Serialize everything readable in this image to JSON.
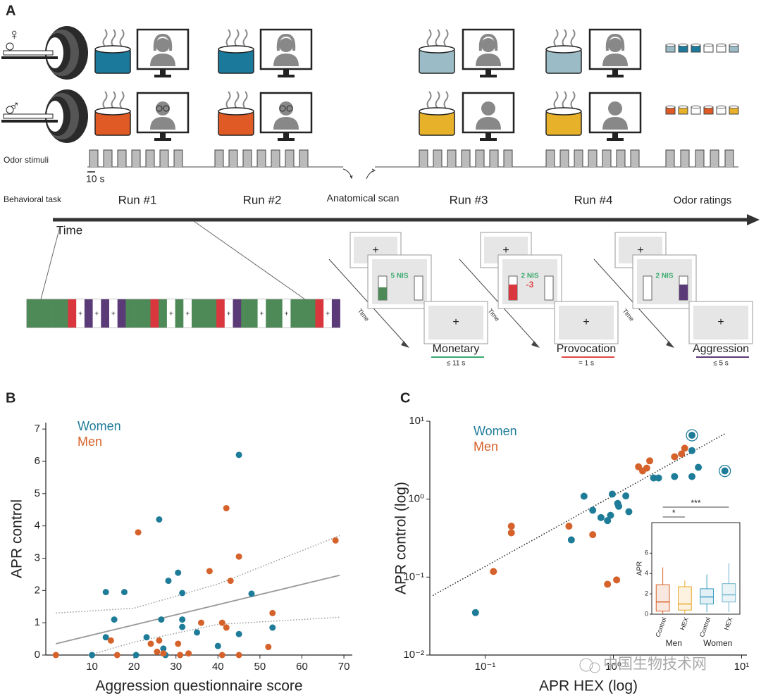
{
  "panel_a": {
    "panel_label": "A",
    "female": "♀",
    "male": "♂",
    "odor_stimuli": "Odor stimuli",
    "scale_bar": "10 s",
    "behavioral_task": "Behavioral task",
    "runs": [
      "Run #1",
      "Run #2",
      "Anatomical scan",
      "Run #3",
      "Run #4",
      "Odor ratings"
    ],
    "time": "Time",
    "trials": [
      {
        "screen_text": "5 NIS",
        "penalty": null,
        "time": "Time",
        "name": "Monetary",
        "duration": "≤ 11 s"
      },
      {
        "screen_text": "2 NIS",
        "penalty": "-3",
        "time": "Time",
        "name": "Provocation",
        "duration": "= 1 s"
      },
      {
        "screen_text": "2 NIS",
        "penalty": null,
        "time": "Time",
        "name": "Aggression",
        "duration": "≤ 5 s"
      }
    ],
    "fixation": "+",
    "watermark": "中国生物技术网"
  },
  "chart_data": [
    {
      "type": "scatter",
      "panel_label": "B",
      "xlabel": "Aggression questionnaire score",
      "ylabel": "APR control",
      "xlim": [
        -1,
        72
      ],
      "ylim": [
        0,
        7.2
      ],
      "xticks": [
        10,
        20,
        30,
        40,
        50,
        60,
        70
      ],
      "yticks": [
        0,
        1,
        2,
        3,
        4,
        5,
        6,
        7
      ],
      "series": [
        {
          "name": "Women",
          "color": "#1f7c99",
          "x": [
            13.3,
            17.7,
            15.3,
            13.3,
            10,
            26,
            28.2,
            30.5,
            31.5,
            26.5,
            31.5,
            31.5,
            23,
            27,
            20.5,
            27.5,
            35,
            40,
            45,
            45,
            48,
            53
          ],
          "values": [
            1.95,
            1.95,
            1.1,
            0.55,
            0,
            4.2,
            2.3,
            2.55,
            1.92,
            1.1,
            1.1,
            0.87,
            0.55,
            0.2,
            0,
            0,
            0.7,
            0.28,
            6.2,
            0.65,
            1.9,
            0.85
          ]
        },
        {
          "name": "Men",
          "color": "#d6622b",
          "x": [
            1.4,
            14.5,
            16,
            21,
            24,
            26,
            25.5,
            27,
            30.5,
            31,
            33,
            36,
            38,
            41,
            41,
            42,
            42,
            43,
            45,
            45,
            52,
            53,
            68
          ],
          "values": [
            0,
            0.45,
            0,
            3.8,
            0.35,
            0.45,
            0.1,
            0.05,
            0.35,
            0,
            0.05,
            1.0,
            2.6,
            1.0,
            0,
            4.55,
            0.85,
            2.3,
            3.05,
            0,
            0.25,
            1.3,
            3.55
          ]
        }
      ],
      "lines": [
        {
          "style": "solid",
          "color": "#999999",
          "x": [
            1.4,
            69
          ],
          "values": [
            0.35,
            2.47
          ]
        },
        {
          "style": "dotted",
          "color": "#999999",
          "x": [
            1.4,
            20,
            40,
            69
          ],
          "values": [
            1.3,
            1.45,
            2.2,
            3.7
          ]
        },
        {
          "style": "dotted",
          "color": "#999999",
          "x": [
            1.4,
            20,
            40,
            69
          ],
          "values": [
            -0.3,
            0.4,
            0.95,
            1.17
          ]
        }
      ]
    },
    {
      "type": "scatter",
      "panel_label": "C",
      "xlabel": "APR HEX (log)",
      "ylabel": "APR control (log)",
      "xlog": true,
      "ylog": true,
      "xlim": [
        0.037,
        11
      ],
      "ylim": [
        0.01,
        10
      ],
      "xticks": [
        {
          "value": 0.1,
          "label": "10⁻¹"
        },
        {
          "value": 1,
          "label": "10⁰"
        },
        {
          "value": 10,
          "label": "10¹"
        }
      ],
      "yticks": [
        {
          "value": 0.01,
          "label": "10⁻²"
        },
        {
          "value": 0.1,
          "label": "10⁻¹"
        },
        {
          "value": 1,
          "label": "10⁰"
        },
        {
          "value": 10,
          "label": "10¹"
        }
      ],
      "series": [
        {
          "name": "Women",
          "color": "#1f7c99",
          "x": [
            0.084,
            0.47,
            0.59,
            0.69,
            0.8,
            0.95,
            0.98,
            1.08,
            1.1,
            0.9,
            1.25,
            1.32,
            2.06,
            2.25,
            3.0,
            4.1,
            4.6,
            4.1,
            7.4,
            4.1
          ],
          "values": [
            0.035,
            0.3,
            1.09,
            0.72,
            0.58,
            0.62,
            1.16,
            0.88,
            0.81,
            0.53,
            1.1,
            0.69,
            1.87,
            1.87,
            1.95,
            4.2,
            2.56,
            1.95,
            2.3,
            6.6
          ],
          "ringed": [
            18,
            19
          ]
        },
        {
          "name": "Men",
          "color": "#d6622b",
          "x": [
            0.116,
            0.16,
            0.16,
            0.45,
            0.69,
            0.9,
            1.06,
            1.57,
            1.69,
            1.92,
            1.82,
            3.0,
            3.4,
            3.6
          ],
          "values": [
            0.118,
            0.45,
            0.37,
            0.45,
            0.35,
            0.081,
            0.092,
            2.6,
            2.3,
            3.1,
            2.5,
            3.5,
            3.8,
            4.5
          ]
        }
      ],
      "lines": [
        {
          "style": "dotted",
          "color": "#222222",
          "x": [
            0.039,
            7.4
          ],
          "values": [
            0.058,
            6.9
          ]
        }
      ]
    },
    {
      "type": "box",
      "ylabel": "APR",
      "categories": [
        "Control",
        "HEX",
        "Control",
        "HEX"
      ],
      "groups": [
        "Men",
        "Women"
      ],
      "colors": [
        "#d6622b",
        "#e8a92a",
        "#3a9cc0",
        "#6fb3cc"
      ],
      "ylim": [
        0,
        9
      ],
      "yticks": [
        0,
        2,
        4,
        6
      ],
      "whisker_low": [
        0,
        0,
        0.2,
        0.2
      ],
      "q1": [
        0.3,
        0.4,
        1.0,
        1.2
      ],
      "median": [
        1.2,
        1.0,
        1.7,
        1.9
      ],
      "q3": [
        2.9,
        2.7,
        2.5,
        3.0
      ],
      "whisker_high": [
        4.6,
        3.3,
        3.9,
        5.0
      ],
      "annotations": [
        "*",
        "***"
      ]
    }
  ]
}
